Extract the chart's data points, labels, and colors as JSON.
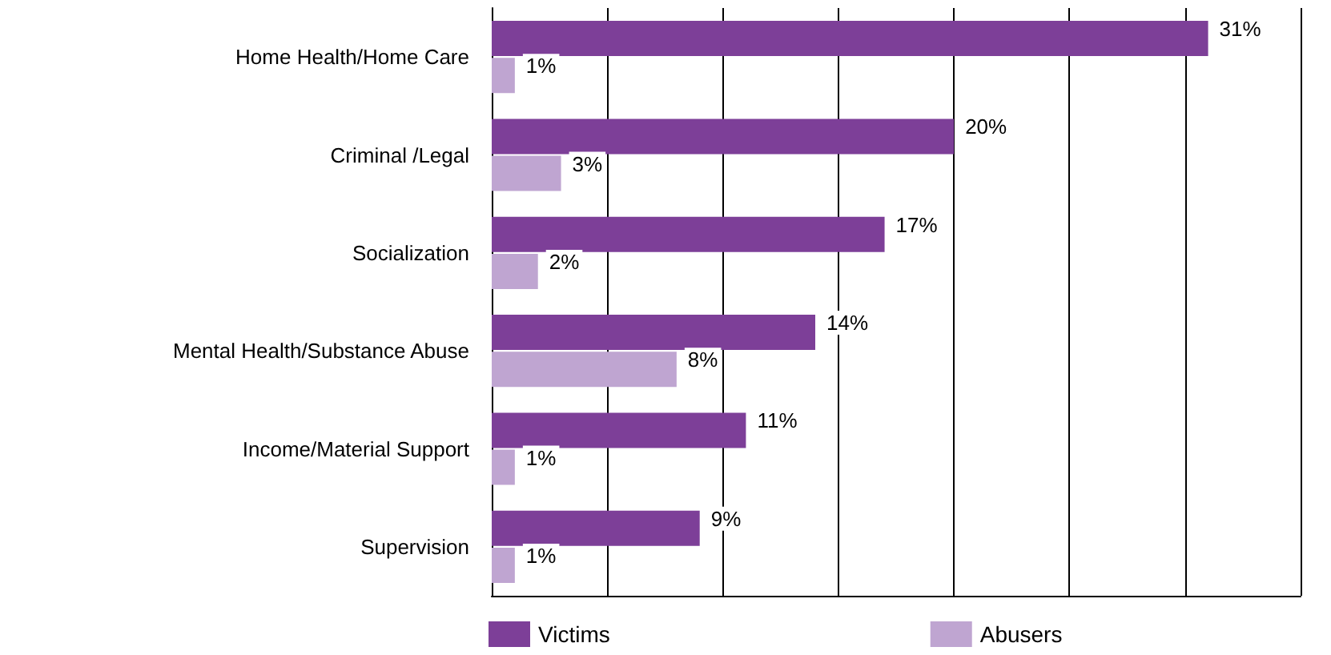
{
  "chart_data": {
    "type": "bar",
    "orientation": "horizontal",
    "categories": [
      "Home Health/Home Care",
      "Criminal /Legal",
      "Socialization",
      "Mental Health/Substance Abuse",
      "Income/Material Support",
      "Supervision"
    ],
    "series": [
      {
        "name": "Victims",
        "color": "#7d3f98",
        "values": [
          31,
          20,
          17,
          14,
          11,
          9
        ],
        "value_labels": [
          "31%",
          "20%",
          "17%",
          "14%",
          "11%",
          "9%"
        ]
      },
      {
        "name": "Abusers",
        "color": "#bfa5d1",
        "values": [
          1,
          3,
          2,
          8,
          1,
          1
        ],
        "value_labels": [
          "1%",
          "3%",
          "2%",
          "8%",
          "1%",
          "1%"
        ]
      }
    ],
    "xlim": [
      0,
      35
    ],
    "xticks": [
      {
        "value": 0,
        "label": null
      },
      {
        "value": 5,
        "label": null
      },
      {
        "value": 10,
        "label": null
      },
      {
        "value": 15,
        "label": null
      },
      {
        "value": 20,
        "label": null
      },
      {
        "value": 25,
        "label": null
      },
      {
        "value": 30,
        "label": null
      },
      {
        "value": 35,
        "label": null
      }
    ],
    "tick_labels": "y",
    "grid": "x",
    "legend": "bottom"
  }
}
